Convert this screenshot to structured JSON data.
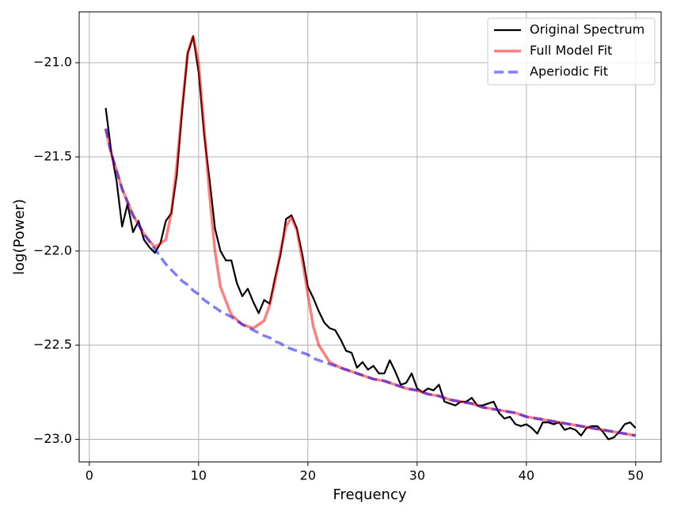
{
  "chart_data": {
    "type": "line",
    "xlabel": "Frequency",
    "ylabel": "log(Power)",
    "xlim": [
      -0.93,
      52.33
    ],
    "ylim": [
      -23.12,
      -20.73
    ],
    "xticks": [
      0,
      10,
      20,
      30,
      40,
      50
    ],
    "yticks": [
      {
        "value": -23.0,
        "label": "−23.0"
      },
      {
        "value": -22.5,
        "label": "−22.5"
      },
      {
        "value": -22.0,
        "label": "−22.0"
      },
      {
        "value": -21.5,
        "label": "−21.5"
      },
      {
        "value": -21.0,
        "label": "−21.0"
      }
    ],
    "grid": true,
    "legend": "upper right",
    "series": [
      {
        "name": "Original Spectrum",
        "color": "#000000",
        "alpha": 1,
        "width": 2.2,
        "linestyle": "solid",
        "x": [
          1.5,
          2,
          2.5,
          3,
          3.5,
          4,
          4.5,
          5,
          5.5,
          6,
          6.5,
          7,
          7.5,
          8,
          8.5,
          9,
          9.5,
          10,
          10.5,
          11,
          11.5,
          12,
          12.5,
          13,
          13.5,
          14,
          14.5,
          15,
          15.5,
          16,
          16.5,
          17,
          17.5,
          18,
          18.5,
          19,
          19.5,
          20,
          20.5,
          21,
          21.5,
          22,
          22.5,
          23,
          23.5,
          24,
          24.5,
          25,
          25.5,
          26,
          26.5,
          27,
          27.5,
          28,
          28.5,
          29,
          29.5,
          30,
          30.5,
          31,
          31.5,
          32,
          32.5,
          33,
          33.5,
          34,
          34.5,
          35,
          35.5,
          36,
          36.5,
          37,
          37.5,
          38,
          38.5,
          39,
          39.5,
          40,
          40.5,
          41,
          41.5,
          42,
          42.5,
          43,
          43.5,
          44,
          44.5,
          45,
          45.5,
          46,
          46.5,
          47,
          47.5,
          48,
          48.5,
          49,
          49.5,
          50
        ],
        "values": [
          -21.24,
          -21.47,
          -21.63,
          -21.87,
          -21.75,
          -21.9,
          -21.84,
          -21.94,
          -21.98,
          -22.01,
          -21.96,
          -21.84,
          -21.8,
          -21.6,
          -21.25,
          -20.95,
          -20.86,
          -21.05,
          -21.38,
          -21.62,
          -21.88,
          -22.0,
          -22.05,
          -22.05,
          -22.17,
          -22.24,
          -22.2,
          -22.27,
          -22.33,
          -22.26,
          -22.28,
          -22.14,
          -22.02,
          -21.83,
          -21.81,
          -21.88,
          -22.02,
          -22.19,
          -22.25,
          -22.32,
          -22.38,
          -22.41,
          -22.42,
          -22.47,
          -22.53,
          -22.54,
          -22.62,
          -22.59,
          -22.63,
          -22.61,
          -22.65,
          -22.65,
          -22.58,
          -22.64,
          -22.71,
          -22.7,
          -22.65,
          -22.73,
          -22.75,
          -22.73,
          -22.74,
          -22.71,
          -22.8,
          -22.81,
          -22.82,
          -22.8,
          -22.8,
          -22.78,
          -22.82,
          -22.82,
          -22.81,
          -22.8,
          -22.86,
          -22.89,
          -22.88,
          -22.92,
          -22.93,
          -22.92,
          -22.94,
          -22.97,
          -22.91,
          -22.91,
          -22.92,
          -22.91,
          -22.95,
          -22.94,
          -22.95,
          -22.98,
          -22.94,
          -22.93,
          -22.93,
          -22.96,
          -23.0,
          -22.99,
          -22.96,
          -22.92,
          -22.91,
          -22.94
        ]
      },
      {
        "name": "Full Model Fit",
        "color": "#ff0000",
        "alpha": 0.5,
        "width": 3.5,
        "linestyle": "solid",
        "x": [
          1.5,
          2,
          3,
          4,
          5,
          6,
          7,
          7.5,
          8,
          8.5,
          9,
          9.5,
          10,
          10.5,
          11,
          11.5,
          12,
          13,
          14,
          15,
          16,
          16.5,
          17,
          17.5,
          18,
          18.5,
          19,
          19.5,
          20,
          20.5,
          21,
          22,
          23,
          24,
          25,
          26,
          27,
          28,
          29,
          30,
          31,
          32,
          33,
          34,
          35,
          36,
          37,
          38,
          39,
          40,
          41,
          42,
          43,
          44,
          45,
          46,
          47,
          48,
          49,
          50
        ],
        "values": [
          -21.35,
          -21.48,
          -21.67,
          -21.81,
          -21.91,
          -21.98,
          -21.94,
          -21.8,
          -21.55,
          -21.24,
          -20.95,
          -20.86,
          -21.0,
          -21.34,
          -21.7,
          -22.0,
          -22.19,
          -22.34,
          -22.39,
          -22.41,
          -22.37,
          -22.29,
          -22.16,
          -22.0,
          -21.87,
          -21.82,
          -21.89,
          -22.05,
          -22.23,
          -22.4,
          -22.5,
          -22.59,
          -22.62,
          -22.64,
          -22.66,
          -22.68,
          -22.69,
          -22.71,
          -22.73,
          -22.74,
          -22.76,
          -22.77,
          -22.79,
          -22.8,
          -22.81,
          -22.83,
          -22.84,
          -22.85,
          -22.86,
          -22.88,
          -22.89,
          -22.9,
          -22.91,
          -22.92,
          -22.93,
          -22.94,
          -22.95,
          -22.96,
          -22.97,
          -22.98
        ]
      },
      {
        "name": "Aperiodic Fit",
        "color": "#0000ff",
        "alpha": 0.5,
        "width": 3.5,
        "linestyle": "dashed",
        "x": [
          1.5,
          2,
          3,
          4,
          5,
          6,
          7,
          7.5,
          8,
          8.5,
          9,
          9.5,
          10,
          10.5,
          11,
          11.5,
          12,
          13,
          14,
          15,
          16,
          16.5,
          17,
          17.5,
          18,
          18.5,
          19,
          19.5,
          20,
          20.5,
          21,
          22,
          23,
          24,
          25,
          26,
          27,
          28,
          29,
          30,
          31,
          32,
          33,
          34,
          35,
          36,
          37,
          38,
          39,
          40,
          41,
          42,
          43,
          44,
          45,
          46,
          47,
          48,
          49,
          50
        ],
        "values": [
          -21.35,
          -21.48,
          -21.67,
          -21.81,
          -21.91,
          -21.99,
          -22.07,
          -22.1,
          -22.13,
          -22.16,
          -22.18,
          -22.21,
          -22.23,
          -22.26,
          -22.28,
          -22.3,
          -22.32,
          -22.35,
          -22.39,
          -22.42,
          -22.45,
          -22.46,
          -22.48,
          -22.49,
          -22.51,
          -22.52,
          -22.53,
          -22.54,
          -22.55,
          -22.57,
          -22.58,
          -22.6,
          -22.62,
          -22.64,
          -22.66,
          -22.68,
          -22.69,
          -22.71,
          -22.73,
          -22.74,
          -22.76,
          -22.77,
          -22.79,
          -22.8,
          -22.81,
          -22.83,
          -22.84,
          -22.85,
          -22.86,
          -22.88,
          -22.89,
          -22.9,
          -22.91,
          -22.92,
          -22.93,
          -22.94,
          -22.95,
          -22.96,
          -22.97,
          -22.98
        ]
      }
    ]
  }
}
